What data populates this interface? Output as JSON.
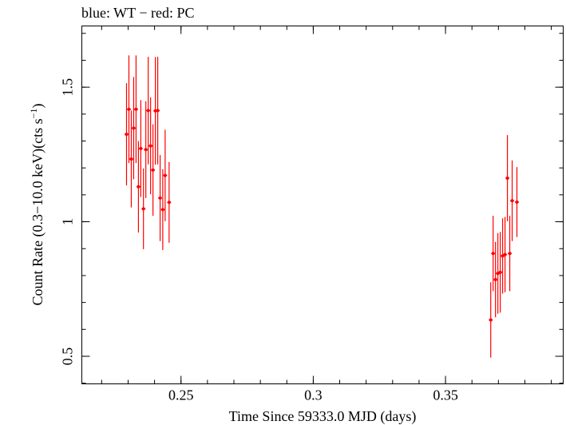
{
  "chart_data": {
    "type": "scatter",
    "title": "blue: WT − red: PC",
    "xlabel": "Time Since 59333.0 MJD (days)",
    "ylabel_main": "Count Rate (0.3−10.0 keV)(cts s",
    "ylabel_sup": "−1",
    "ylabel_end": ")",
    "xlim": [
      0.2125,
      0.3945
    ],
    "ylim": [
      0.3975,
      1.7275
    ],
    "x_ticks": [
      {
        "value": 0.25,
        "label": "0.25"
      },
      {
        "value": 0.3,
        "label": "0.3"
      },
      {
        "value": 0.35,
        "label": "0.35"
      }
    ],
    "y_ticks": [
      {
        "value": 0.5,
        "label": "0.5"
      },
      {
        "value": 1.0,
        "label": "1"
      },
      {
        "value": 1.5,
        "label": "1.5"
      }
    ],
    "x_minor_step": 0.01,
    "y_minor_step": 0.1,
    "series": [
      {
        "name": "PC",
        "color": "#ff0000",
        "points": [
          {
            "x": 0.2294,
            "y": 1.325,
            "err": 0.19
          },
          {
            "x": 0.2303,
            "y": 1.418,
            "err": 0.2
          },
          {
            "x": 0.2312,
            "y": 1.233,
            "err": 0.18
          },
          {
            "x": 0.2321,
            "y": 1.348,
            "err": 0.19
          },
          {
            "x": 0.233,
            "y": 1.418,
            "err": 0.2
          },
          {
            "x": 0.2339,
            "y": 1.13,
            "err": 0.17
          },
          {
            "x": 0.2348,
            "y": 1.272,
            "err": 0.18
          },
          {
            "x": 0.2358,
            "y": 1.048,
            "err": 0.15
          },
          {
            "x": 0.2367,
            "y": 1.268,
            "err": 0.18
          },
          {
            "x": 0.2376,
            "y": 1.413,
            "err": 0.2
          },
          {
            "x": 0.2385,
            "y": 1.282,
            "err": 0.18
          },
          {
            "x": 0.2394,
            "y": 1.192,
            "err": 0.17
          },
          {
            "x": 0.2403,
            "y": 1.412,
            "err": 0.2
          },
          {
            "x": 0.2412,
            "y": 1.413,
            "err": 0.2
          },
          {
            "x": 0.2421,
            "y": 1.088,
            "err": 0.16
          },
          {
            "x": 0.2431,
            "y": 1.045,
            "err": 0.15
          },
          {
            "x": 0.244,
            "y": 1.172,
            "err": 0.17
          },
          {
            "x": 0.2455,
            "y": 1.072,
            "err": 0.15
          },
          {
            "x": 0.3671,
            "y": 0.635,
            "err": 0.14
          },
          {
            "x": 0.368,
            "y": 0.882,
            "err": 0.14
          },
          {
            "x": 0.3689,
            "y": 0.785,
            "err": 0.14
          },
          {
            "x": 0.3698,
            "y": 0.808,
            "err": 0.15
          },
          {
            "x": 0.3707,
            "y": 0.812,
            "err": 0.15
          },
          {
            "x": 0.3716,
            "y": 0.873,
            "err": 0.14
          },
          {
            "x": 0.3725,
            "y": 0.878,
            "err": 0.14
          },
          {
            "x": 0.3734,
            "y": 1.162,
            "err": 0.16
          },
          {
            "x": 0.3743,
            "y": 0.882,
            "err": 0.14
          },
          {
            "x": 0.3752,
            "y": 1.078,
            "err": 0.15
          },
          {
            "x": 0.377,
            "y": 1.073,
            "err": 0.13
          }
        ]
      }
    ]
  }
}
